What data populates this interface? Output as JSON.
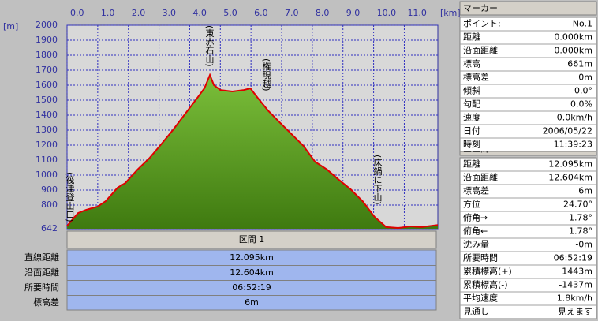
{
  "chart_data": {
    "type": "area",
    "x_label": "[km]",
    "y_label": "[m]",
    "x": [
      0,
      0.1,
      0.36,
      0.62,
      1.0,
      1.26,
      1.65,
      1.9,
      2.3,
      2.7,
      3.07,
      3.45,
      3.84,
      4.23,
      4.48,
      4.66,
      4.79,
      5.0,
      5.39,
      5.77,
      5.98,
      6.24,
      6.55,
      6.93,
      7.32,
      7.71,
      8.09,
      8.48,
      8.87,
      9.25,
      9.64,
      10.03,
      10.41,
      10.8,
      11.19,
      11.57,
      12.095
    ],
    "values": [
      661,
      685,
      747,
      768,
      790,
      826,
      916,
      947,
      1037,
      1116,
      1205,
      1300,
      1405,
      1510,
      1579,
      1668,
      1600,
      1568,
      1558,
      1568,
      1579,
      1510,
      1432,
      1353,
      1274,
      1195,
      1089,
      1037,
      968,
      905,
      826,
      721,
      653,
      647,
      658,
      653,
      667
    ],
    "color": "#e00000",
    "fill": "#5a9a20",
    "xlim": [
      0,
      12.095
    ],
    "ylim": [
      642,
      2000
    ],
    "xticks": [
      {
        "value": 0,
        "label": "0.0"
      },
      {
        "value": 1,
        "label": "1.0"
      },
      {
        "value": 2,
        "label": "2.0"
      },
      {
        "value": 3,
        "label": "3.0"
      },
      {
        "value": 4,
        "label": "4.0"
      },
      {
        "value": 5,
        "label": "5.0"
      },
      {
        "value": 6,
        "label": "6.0"
      },
      {
        "value": 7,
        "label": "7.0"
      },
      {
        "value": 8,
        "label": "8.0"
      },
      {
        "value": 9,
        "label": "9.0"
      },
      {
        "value": 10,
        "label": "10.0"
      },
      {
        "value": 11,
        "label": "11.0"
      }
    ],
    "yticks": [
      642,
      800,
      900,
      1000,
      1100,
      1200,
      1300,
      1400,
      1500,
      1600,
      1700,
      1800,
      1900,
      2000
    ],
    "grid": true,
    "annotations": [
      "(筏津登山口)",
      "(東赤石山)",
      "(権現越)",
      "(床鍋に下山)"
    ]
  },
  "section": {
    "title": "区間 1",
    "rows": [
      [
        "直線距離",
        "12.095km"
      ],
      [
        "沿面距離",
        "12.604km"
      ],
      [
        "所要時間",
        "06:52:19"
      ],
      [
        "標高差",
        "6m"
      ]
    ]
  },
  "marker": {
    "title": "マーカー",
    "rows": [
      [
        "ポイント:",
        "No.1"
      ],
      [
        "距離",
        "0.000km"
      ],
      [
        "沿面距離",
        "0.000km"
      ],
      [
        "標高",
        "661m"
      ],
      [
        "標高差",
        "0m"
      ],
      [
        "傾斜",
        "0.0°"
      ],
      [
        "勾配",
        "0.0%"
      ],
      [
        "速度",
        "0.0km/h"
      ],
      [
        "日付",
        "2006/05/22"
      ],
      [
        "時刻",
        "11:39:23"
      ]
    ]
  },
  "total": {
    "title": "全区間",
    "rows": [
      [
        "距離",
        "12.095km"
      ],
      [
        "沿面距離",
        "12.604km"
      ],
      [
        "標高差",
        "6m"
      ],
      [
        "方位",
        "24.70°"
      ],
      [
        "俯角→",
        "-1.78°"
      ],
      [
        "俯角←",
        "1.78°"
      ],
      [
        "沈み量",
        "-0m"
      ],
      [
        "所要時間",
        "06:52:19"
      ],
      [
        "累積標高(+)",
        "1443m"
      ],
      [
        "累積標高(-)",
        "-1437m"
      ],
      [
        "平均速度",
        "1.8km/h"
      ],
      [
        "見通し",
        "見えます"
      ]
    ]
  }
}
